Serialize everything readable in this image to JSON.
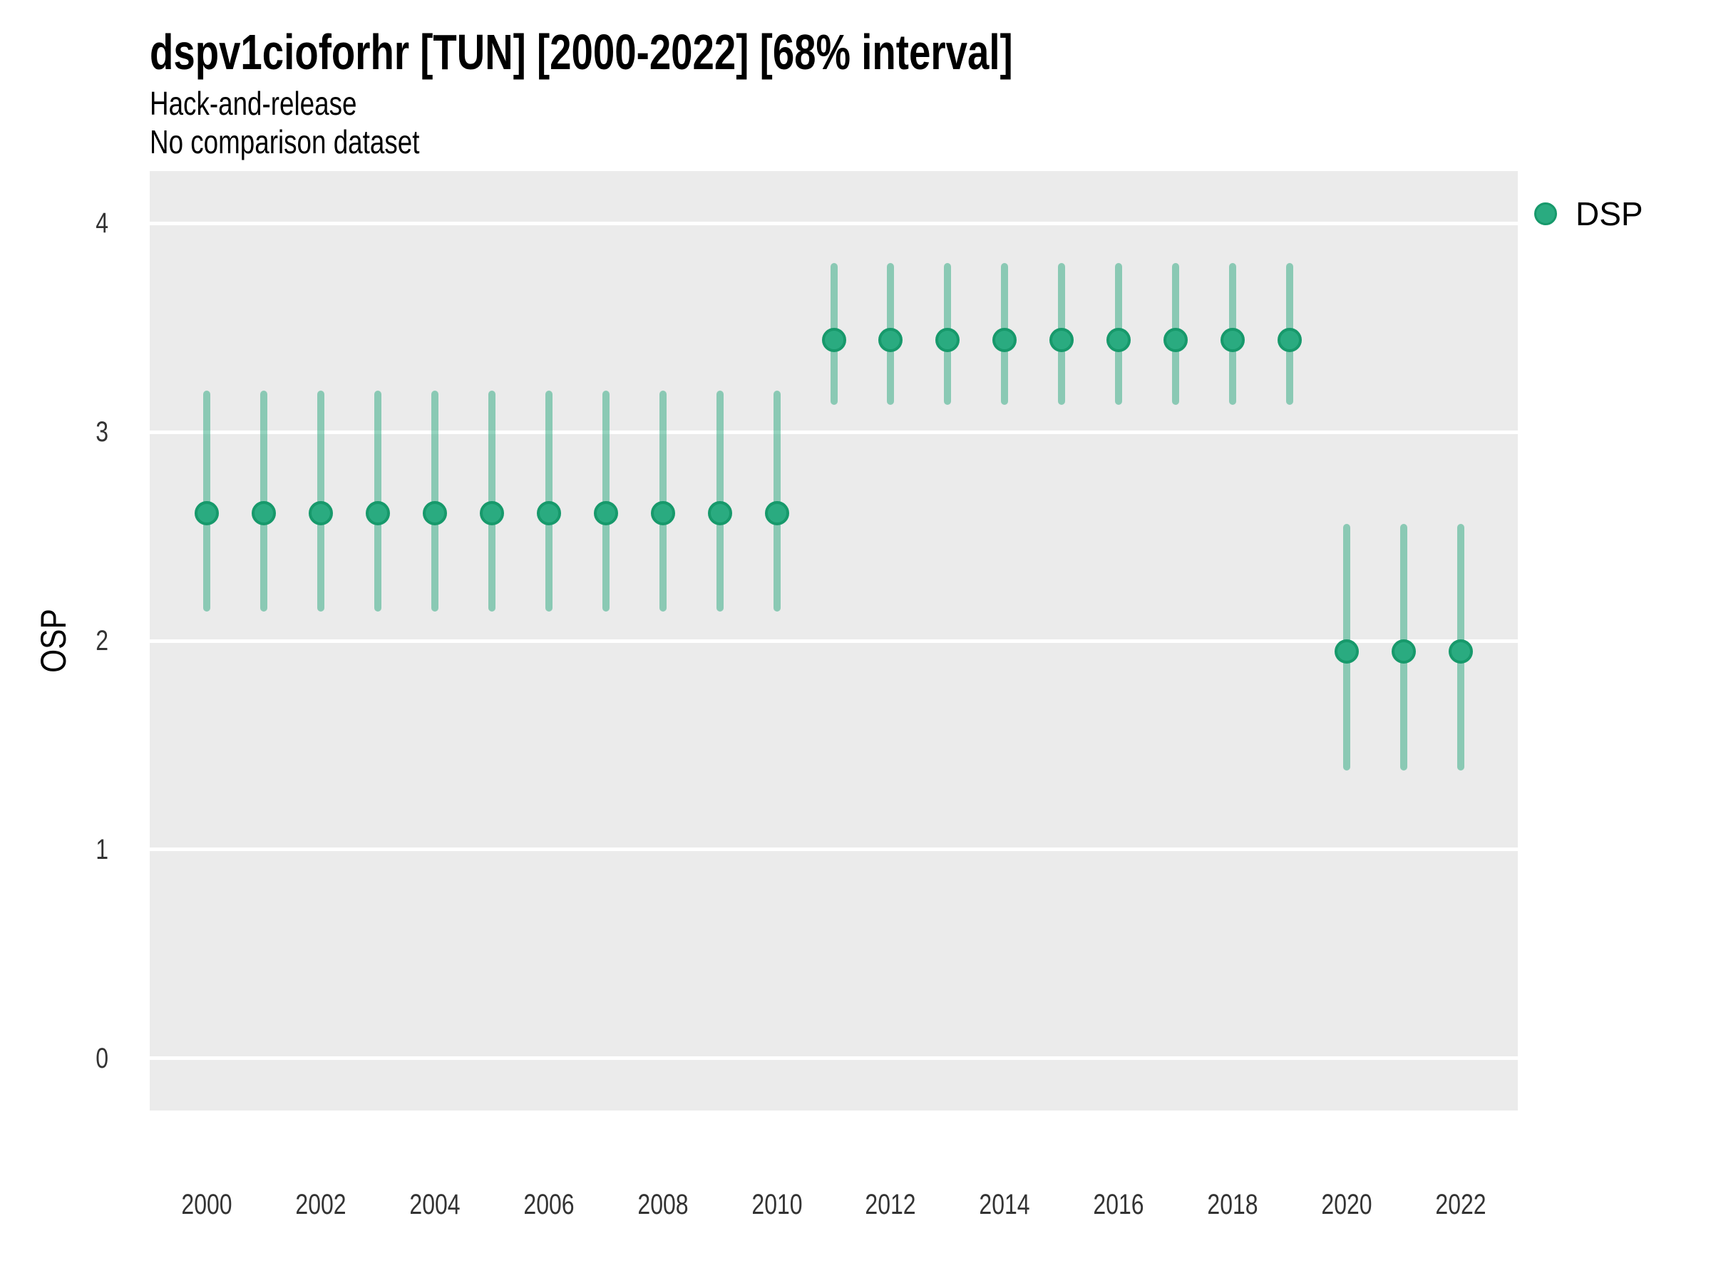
{
  "chart_data": {
    "type": "scatter",
    "title": "dspv1cioforhr [TUN] [2000-2022] [68% interval]",
    "subtitle": [
      "Hack-and-release",
      "No comparison dataset"
    ],
    "xlabel": "",
    "ylabel": "OSP",
    "xlim": [
      1999,
      2023
    ],
    "ylim": [
      -0.25,
      4.25
    ],
    "x_ticks": [
      {
        "v": 2000,
        "label": "2000"
      },
      {
        "v": 2002,
        "label": "2002"
      },
      {
        "v": 2004,
        "label": "2004"
      },
      {
        "v": 2006,
        "label": "2006"
      },
      {
        "v": 2008,
        "label": "2008"
      },
      {
        "v": 2010,
        "label": "2010"
      },
      {
        "v": 2012,
        "label": "2012"
      },
      {
        "v": 2014,
        "label": "2014"
      },
      {
        "v": 2016,
        "label": "2016"
      },
      {
        "v": 2018,
        "label": "2018"
      },
      {
        "v": 2020,
        "label": "2020"
      },
      {
        "v": 2022,
        "label": "2022"
      }
    ],
    "y_ticks": [
      {
        "v": 0,
        "label": "0"
      },
      {
        "v": 1,
        "label": "1"
      },
      {
        "v": 2,
        "label": "2"
      },
      {
        "v": 3,
        "label": "3"
      },
      {
        "v": 4,
        "label": "4"
      }
    ],
    "grid": {
      "horizontal_major": true,
      "vertical": false
    },
    "colors": {
      "panel_bg": "#ebebeb",
      "grid": "#ffffff",
      "marker_fill": "#2aab80",
      "marker_edge": "#17996b",
      "interval": "rgba(42, 168, 126, 0.5)",
      "tick_text": "#333333",
      "title_text": "#000000"
    },
    "legend": {
      "position": "top-right",
      "entries": [
        {
          "label": "DSP",
          "color": "#2aab80"
        }
      ]
    },
    "interval_level": "68%",
    "series": [
      {
        "name": "DSP",
        "points": [
          {
            "x": 2000,
            "y": 2.61,
            "lo": 2.14,
            "hi": 3.2
          },
          {
            "x": 2001,
            "y": 2.61,
            "lo": 2.14,
            "hi": 3.2
          },
          {
            "x": 2002,
            "y": 2.61,
            "lo": 2.14,
            "hi": 3.2
          },
          {
            "x": 2003,
            "y": 2.61,
            "lo": 2.14,
            "hi": 3.2
          },
          {
            "x": 2004,
            "y": 2.61,
            "lo": 2.14,
            "hi": 3.2
          },
          {
            "x": 2005,
            "y": 2.61,
            "lo": 2.14,
            "hi": 3.2
          },
          {
            "x": 2006,
            "y": 2.61,
            "lo": 2.14,
            "hi": 3.2
          },
          {
            "x": 2007,
            "y": 2.61,
            "lo": 2.14,
            "hi": 3.2
          },
          {
            "x": 2008,
            "y": 2.61,
            "lo": 2.14,
            "hi": 3.2
          },
          {
            "x": 2009,
            "y": 2.61,
            "lo": 2.14,
            "hi": 3.2
          },
          {
            "x": 2010,
            "y": 2.61,
            "lo": 2.14,
            "hi": 3.2
          },
          {
            "x": 2011,
            "y": 3.44,
            "lo": 3.13,
            "hi": 3.81
          },
          {
            "x": 2012,
            "y": 3.44,
            "lo": 3.13,
            "hi": 3.81
          },
          {
            "x": 2013,
            "y": 3.44,
            "lo": 3.13,
            "hi": 3.81
          },
          {
            "x": 2014,
            "y": 3.44,
            "lo": 3.13,
            "hi": 3.81
          },
          {
            "x": 2015,
            "y": 3.44,
            "lo": 3.13,
            "hi": 3.81
          },
          {
            "x": 2016,
            "y": 3.44,
            "lo": 3.13,
            "hi": 3.81
          },
          {
            "x": 2017,
            "y": 3.44,
            "lo": 3.13,
            "hi": 3.81
          },
          {
            "x": 2018,
            "y": 3.44,
            "lo": 3.13,
            "hi": 3.81
          },
          {
            "x": 2019,
            "y": 3.44,
            "lo": 3.13,
            "hi": 3.81
          },
          {
            "x": 2020,
            "y": 1.95,
            "lo": 1.38,
            "hi": 2.56
          },
          {
            "x": 2021,
            "y": 1.95,
            "lo": 1.38,
            "hi": 2.56
          },
          {
            "x": 2022,
            "y": 1.95,
            "lo": 1.38,
            "hi": 2.56
          }
        ]
      }
    ]
  }
}
